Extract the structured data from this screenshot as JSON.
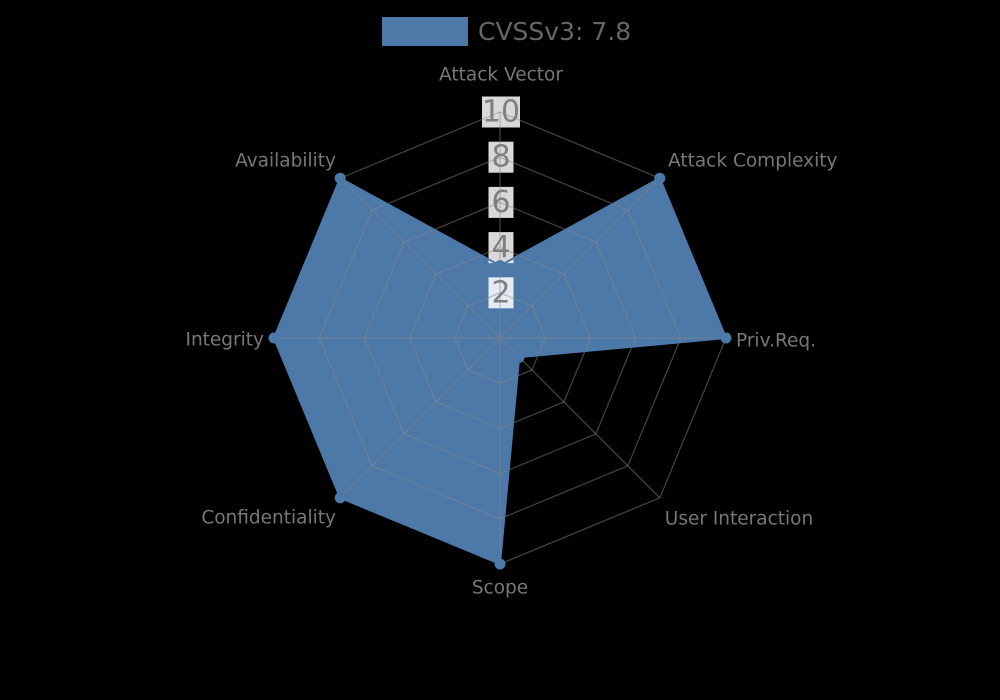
{
  "legend": {
    "label": "CVSSv3: 7.8",
    "swatch_color": "#4d79a8"
  },
  "chart_data": {
    "type": "radar",
    "title": "",
    "categories": [
      "Attack Vector",
      "Attack Complexity",
      "Priv.Req.",
      "User Interaction",
      "Scope",
      "Confidentiality",
      "Integrity",
      "Availability"
    ],
    "series": [
      {
        "name": "CVSSv3: 7.8",
        "values": [
          3.2,
          10,
          10,
          1.2,
          10,
          10,
          10,
          10
        ]
      }
    ],
    "ticks": [
      2,
      4,
      6,
      8,
      10
    ],
    "rmax": 10,
    "grid": "on",
    "legend_position": "top",
    "colors": {
      "fill": "#4d79a8",
      "grid": "#878787",
      "axis_label": "#777777",
      "tick_label": "#7f7f7f",
      "tick_box": "#ffffff",
      "legend_text": "#666666",
      "background": "#000000"
    }
  }
}
